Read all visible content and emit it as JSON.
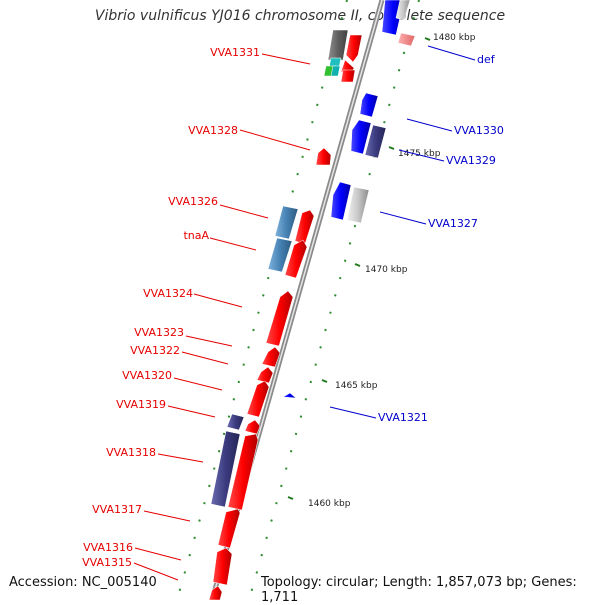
{
  "title": "Vibrio vulnificus YJ016 chromosome II, complete sequence",
  "accession": "Accession: NC_005140",
  "topology": "Topology: circular; Length: 1,857,073 bp; Genes: 1,711",
  "scale_marks": [
    "1480 kbp",
    "1475 kbp",
    "1470 kbp",
    "1465 kbp",
    "1460 kbp"
  ],
  "gene_labels_left": [
    "VVA1331",
    "VVA1328",
    "VVA1326",
    "tnaA",
    "VVA1324",
    "VVA1323",
    "VVA1322",
    "VVA1320",
    "VVA1319",
    "VVA1318",
    "VVA1317",
    "VVA1316",
    "VVA1315"
  ],
  "gene_labels_right": [
    "def",
    "VVA1330",
    "VVA1329",
    "VVA1327",
    "VVA1321"
  ],
  "colors": {
    "forward": "#e60000",
    "reverse": "#0000e6",
    "steelblue": "#4682b4",
    "slate": "#3b3b80",
    "gray": "#c0c0c0",
    "pink": "#f08080",
    "tick": "#228b22",
    "backbone": "#9a9a9a",
    "label_left": "#e60000",
    "label_right": "#0000cc"
  }
}
